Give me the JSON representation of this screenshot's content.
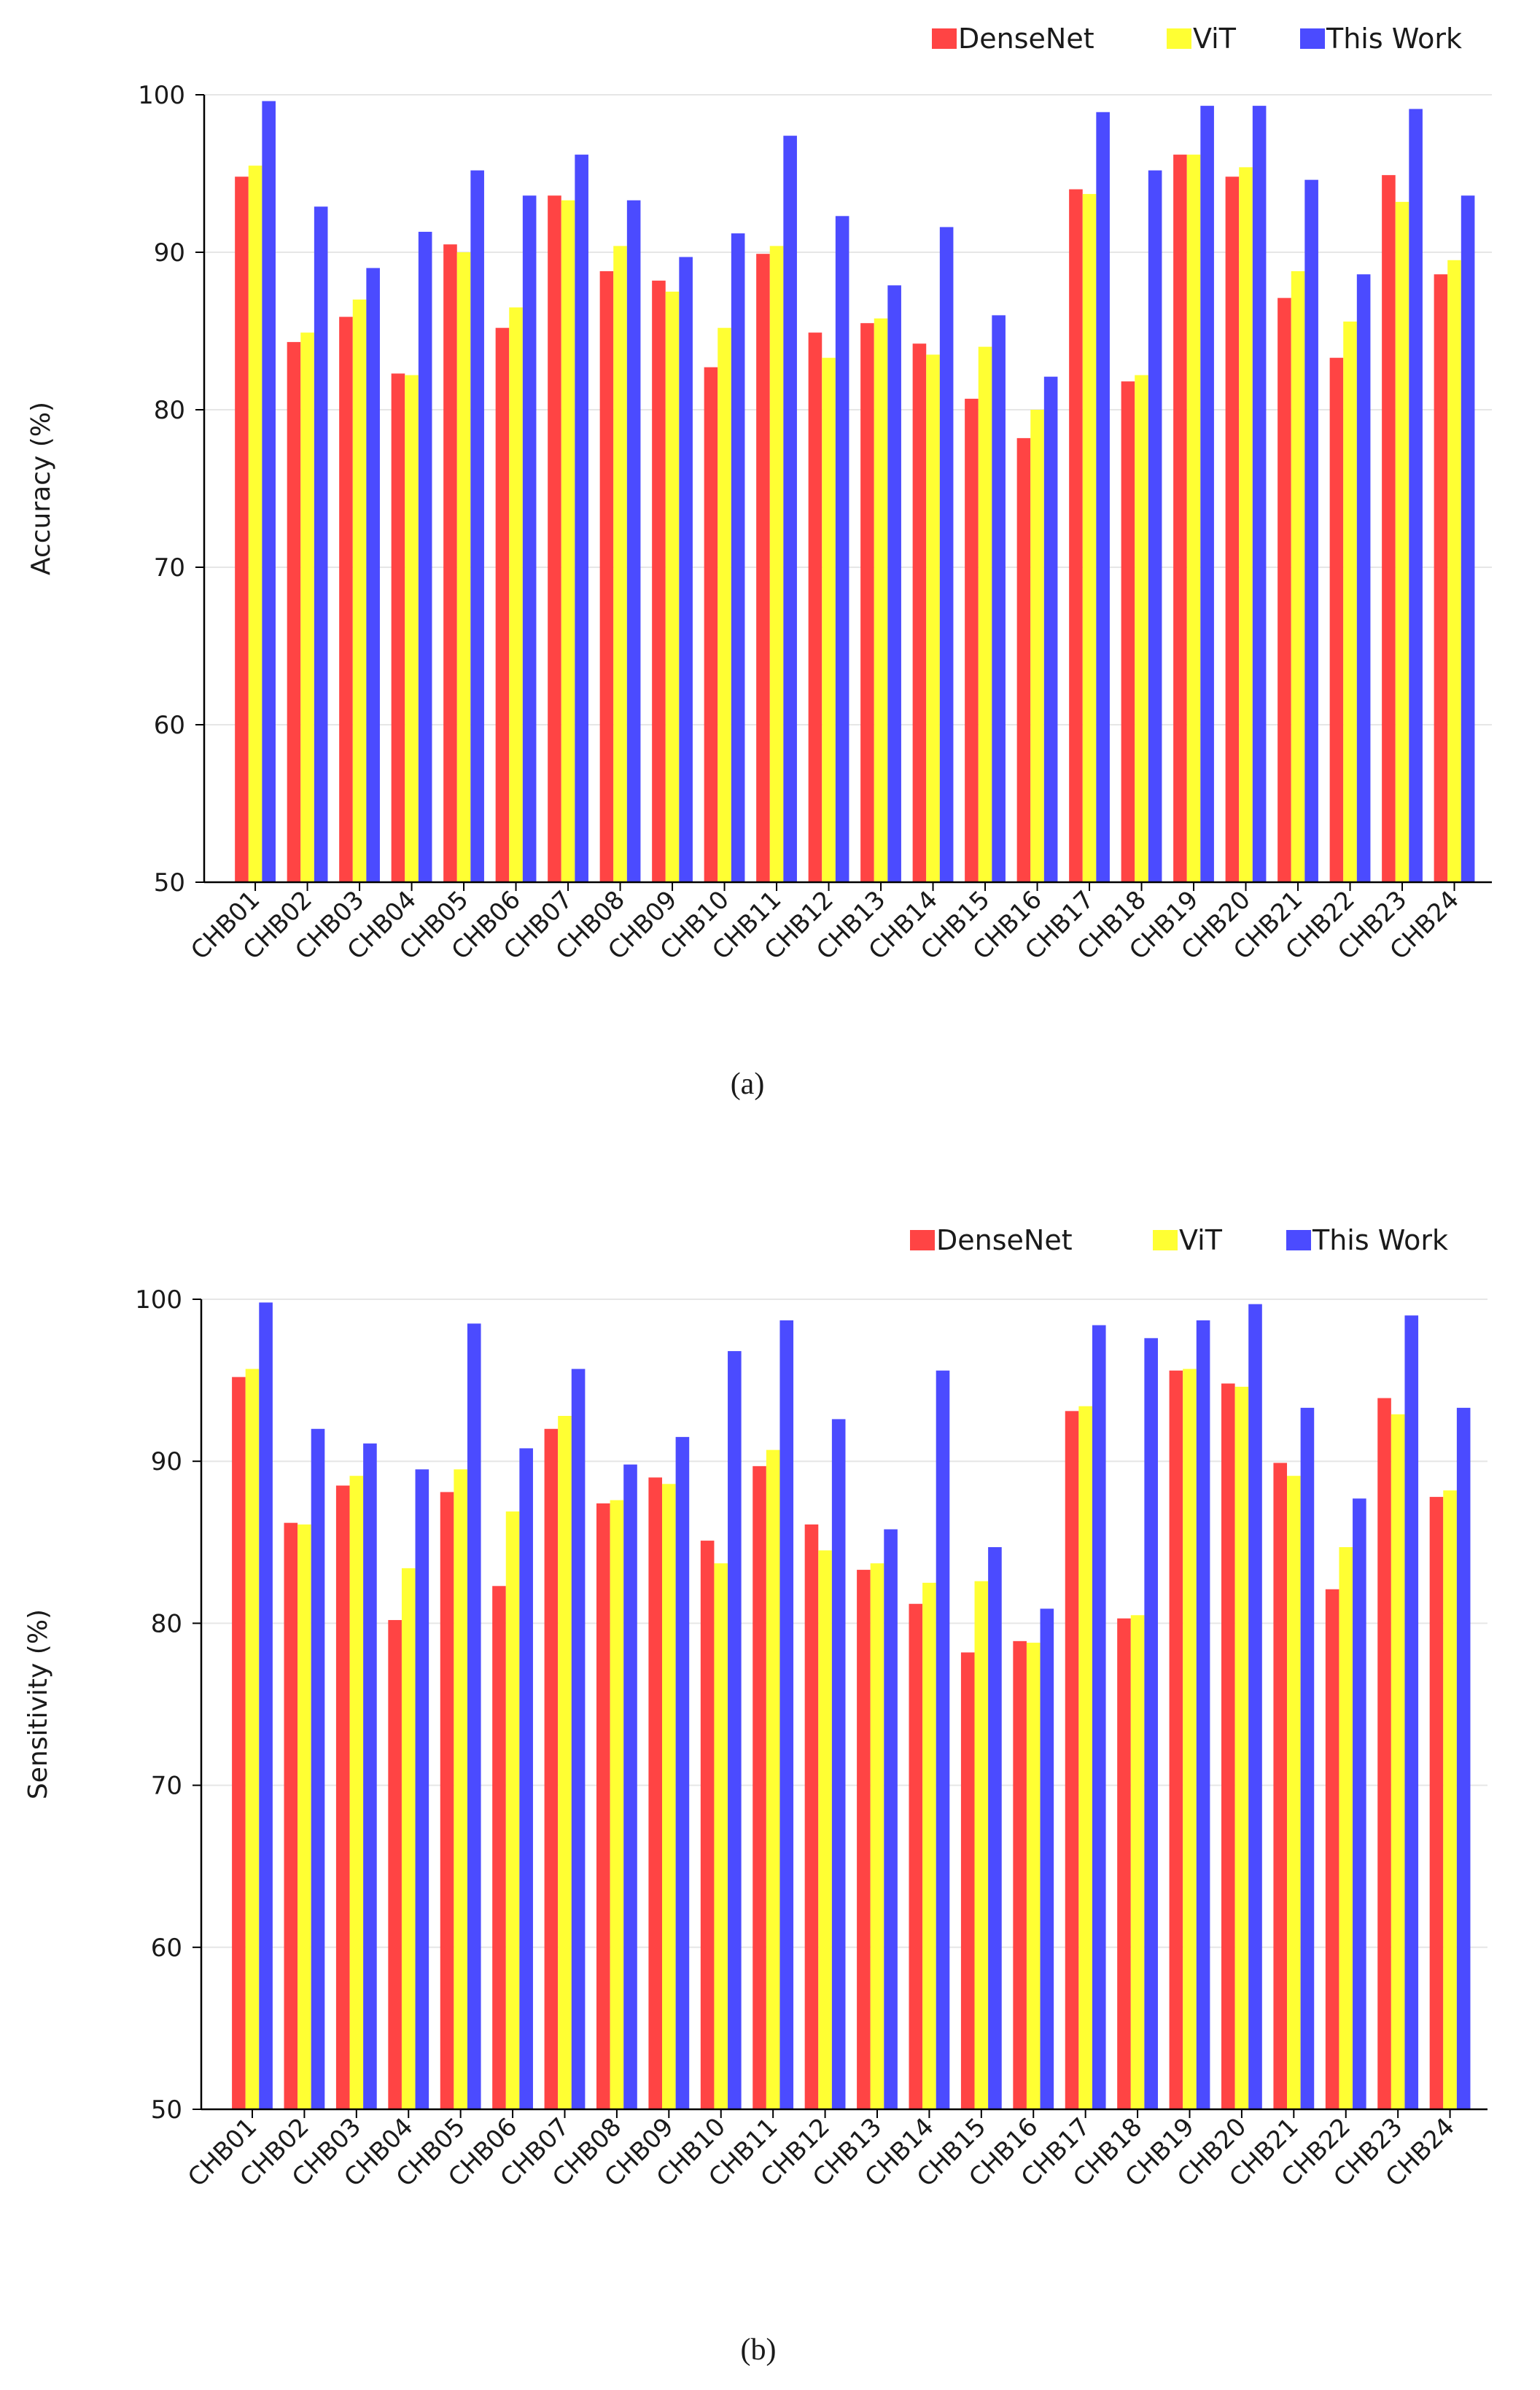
{
  "chart_data": [
    {
      "type": "bar",
      "panel_label": "(a)",
      "title": "",
      "xlabel": "",
      "ylabel": "Accuracy (%)",
      "ylim": [
        50,
        100
      ],
      "yticks": [
        50,
        60,
        70,
        80,
        90,
        100
      ],
      "grid": "horizontal",
      "legend_position": "top-right",
      "categories": [
        "CHB01",
        "CHB02",
        "CHB03",
        "CHB04",
        "CHB05",
        "CHB06",
        "CHB07",
        "CHB08",
        "CHB09",
        "CHB10",
        "CHB11",
        "CHB12",
        "CHB13",
        "CHB14",
        "CHB15",
        "CHB16",
        "CHB17",
        "CHB18",
        "CHB19",
        "CHB20",
        "CHB21",
        "CHB22",
        "CHB23",
        "CHB24"
      ],
      "series": [
        {
          "name": "DenseNet",
          "color": "#ff4444",
          "values": [
            94.8,
            84.3,
            85.9,
            82.3,
            90.5,
            85.2,
            93.6,
            88.8,
            88.2,
            82.7,
            89.9,
            84.9,
            85.5,
            84.2,
            80.7,
            78.2,
            94.0,
            81.8,
            96.2,
            94.8,
            87.1,
            83.3,
            94.9,
            88.6
          ]
        },
        {
          "name": "ViT",
          "color": "#ffff33",
          "values": [
            95.5,
            84.9,
            87.0,
            82.2,
            90.0,
            86.5,
            93.3,
            90.4,
            87.5,
            85.2,
            90.4,
            83.3,
            85.8,
            83.5,
            84.0,
            80.0,
            93.7,
            82.2,
            96.2,
            95.4,
            88.8,
            85.6,
            93.2,
            89.5
          ]
        },
        {
          "name": "This Work",
          "color": "#4b4bff",
          "values": [
            99.6,
            92.9,
            89.0,
            91.3,
            95.2,
            93.6,
            96.2,
            93.3,
            89.7,
            91.2,
            97.4,
            92.3,
            87.9,
            91.6,
            86.0,
            82.1,
            98.9,
            95.2,
            99.3,
            99.3,
            94.6,
            88.6,
            99.1,
            93.6
          ]
        }
      ]
    },
    {
      "type": "bar",
      "panel_label": "(b)",
      "title": "",
      "xlabel": "",
      "ylabel": "Sensitivity (%)",
      "ylim": [
        50,
        100
      ],
      "yticks": [
        50,
        60,
        70,
        80,
        90,
        100
      ],
      "grid": "horizontal",
      "legend_position": "top-right",
      "categories": [
        "CHB01",
        "CHB02",
        "CHB03",
        "CHB04",
        "CHB05",
        "CHB06",
        "CHB07",
        "CHB08",
        "CHB09",
        "CHB10",
        "CHB11",
        "CHB12",
        "CHB13",
        "CHB14",
        "CHB15",
        "CHB16",
        "CHB17",
        "CHB18",
        "CHB19",
        "CHB20",
        "CHB21",
        "CHB22",
        "CHB23",
        "CHB24"
      ],
      "series": [
        {
          "name": "DenseNet",
          "color": "#ff4444",
          "values": [
            95.2,
            86.2,
            88.5,
            80.2,
            88.1,
            82.3,
            92.0,
            87.4,
            89.0,
            85.1,
            89.7,
            86.1,
            83.3,
            81.2,
            78.2,
            78.9,
            93.1,
            80.3,
            95.6,
            94.8,
            89.9,
            82.1,
            93.9,
            87.8
          ]
        },
        {
          "name": "ViT",
          "color": "#ffff33",
          "values": [
            95.7,
            86.1,
            89.1,
            83.4,
            89.5,
            86.9,
            92.8,
            87.6,
            88.6,
            83.7,
            90.7,
            84.5,
            83.7,
            82.5,
            82.6,
            78.8,
            93.4,
            80.5,
            95.7,
            94.6,
            89.1,
            84.7,
            92.9,
            88.2
          ]
        },
        {
          "name": "This Work",
          "color": "#4b4bff",
          "values": [
            99.8,
            92.0,
            91.1,
            89.5,
            98.5,
            90.8,
            95.7,
            89.8,
            91.5,
            96.8,
            98.7,
            92.6,
            85.8,
            95.6,
            84.7,
            80.9,
            98.4,
            97.6,
            98.7,
            99.7,
            93.3,
            87.7,
            99.0,
            93.3
          ]
        }
      ]
    }
  ]
}
